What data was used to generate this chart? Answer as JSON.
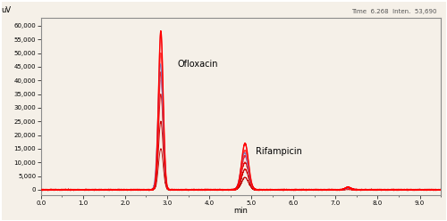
{
  "title_top_left": "uV",
  "title_top_right": "Time  6.268  Inten.  53,690",
  "xlabel": "min",
  "ylabel": "uV",
  "xlim": [
    0.0,
    9.5
  ],
  "ylim": [
    -2000,
    63000
  ],
  "yticks": [
    0,
    5000,
    10000,
    15000,
    20000,
    25000,
    30000,
    35000,
    40000,
    45000,
    50000,
    55000,
    60000
  ],
  "xticks": [
    0.0,
    1.0,
    2.0,
    3.0,
    4.0,
    5.0,
    6.0,
    7.0,
    8.0,
    9.0
  ],
  "label_ofloxacin": "Ofloxacin",
  "label_rifampicin": "Rifampicin",
  "ofx_peak_time": 2.85,
  "rif_peak_time": 4.85,
  "bg_color": "#f5f0e8",
  "border_color": "#8b8b8b",
  "line_colors_red": [
    "#ff4444",
    "#ff8888",
    "#cc2222"
  ],
  "line_colors_blue": "#8888cc"
}
